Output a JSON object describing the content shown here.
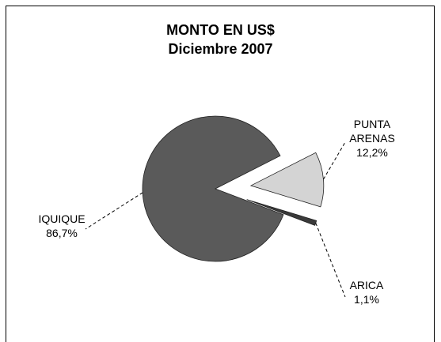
{
  "chart_data": {
    "type": "pie",
    "title": "MONTO EN US$",
    "subtitle": "Diciembre 2007",
    "categories": [
      "PUNTA ARENAS",
      "ARICA",
      "IQUIQUE"
    ],
    "values": [
      12.2,
      1.1,
      86.7
    ],
    "value_labels": [
      "12,2%",
      "1,1%",
      "86,7%"
    ],
    "colors": [
      "#d4d4d4",
      "#3a3a3a",
      "#5a5a5a"
    ]
  }
}
